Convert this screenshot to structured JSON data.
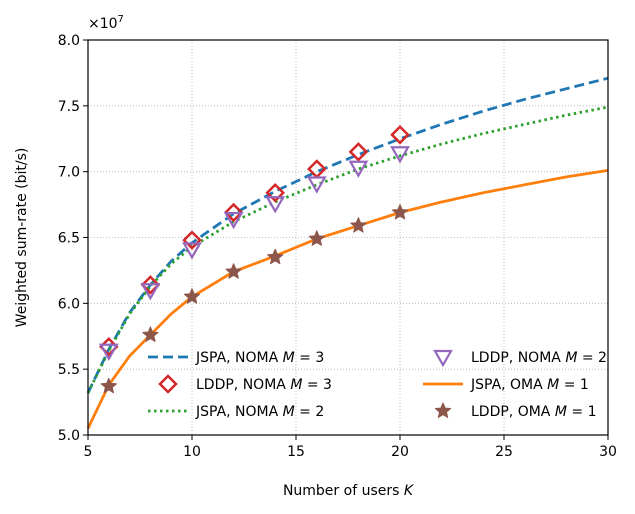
{
  "chart_data": {
    "type": "line",
    "title": "",
    "xlabel": "Number of users K",
    "ylabel": "Weighted sum-rate (bit/s)",
    "y_multiplier_label": "×10^7",
    "xlim": [
      5,
      30
    ],
    "ylim": [
      5.0,
      8.0
    ],
    "x_ticks": [
      5,
      10,
      15,
      20,
      25,
      30
    ],
    "y_ticks": [
      5.0,
      5.5,
      6.0,
      6.5,
      7.0,
      7.5,
      8.0
    ],
    "x_tick_labels": [
      "5",
      "10",
      "15",
      "20",
      "25",
      "30"
    ],
    "y_tick_labels": [
      "5.0",
      "5.5",
      "6.0",
      "6.5",
      "7.0",
      "7.5",
      "8.0"
    ],
    "grid": true,
    "legend_placement": "lower-center",
    "series": [
      {
        "name": "JSPA, NOMA M = 3",
        "legend_prefix": "JSPA, NOMA ",
        "legend_var": "M",
        "legend_suffix": " = 3",
        "style": "dashed",
        "color": "#1f77b4",
        "x": [
          5,
          6,
          7,
          8,
          9,
          10,
          12,
          14,
          16,
          18,
          20,
          22,
          24,
          26,
          28,
          30
        ],
        "y": [
          5.32,
          5.65,
          5.93,
          6.14,
          6.32,
          6.46,
          6.68,
          6.85,
          7.0,
          7.13,
          7.25,
          7.36,
          7.46,
          7.55,
          7.63,
          7.71
        ]
      },
      {
        "name": "LDDP, NOMA M = 3",
        "legend_prefix": "LDDP, NOMA ",
        "legend_var": "M",
        "legend_suffix": " = 3",
        "style": "marker-diamond",
        "color": "#d62728",
        "x": [
          6,
          8,
          10,
          12,
          14,
          16,
          18,
          20
        ],
        "y": [
          5.67,
          6.14,
          6.48,
          6.69,
          6.84,
          7.02,
          7.15,
          7.28
        ]
      },
      {
        "name": "JSPA, NOMA M = 2",
        "legend_prefix": "JSPA, NOMA ",
        "legend_var": "M",
        "legend_suffix": " = 2",
        "style": "dotted",
        "color": "#2ca02c",
        "x": [
          5,
          6,
          7,
          8,
          9,
          10,
          12,
          14,
          16,
          18,
          20,
          22,
          24,
          26,
          28,
          30
        ],
        "y": [
          5.32,
          5.64,
          5.92,
          6.13,
          6.3,
          6.43,
          6.62,
          6.77,
          6.9,
          7.02,
          7.12,
          7.21,
          7.29,
          7.36,
          7.43,
          7.49
        ]
      },
      {
        "name": "LDDP, NOMA M = 2",
        "legend_prefix": "LDDP, NOMA ",
        "legend_var": "M",
        "legend_suffix": " = 2",
        "style": "marker-triangle-down",
        "color": "#9467bd",
        "x": [
          6,
          8,
          10,
          12,
          14,
          16,
          18,
          20
        ],
        "y": [
          5.64,
          6.1,
          6.41,
          6.64,
          6.76,
          6.91,
          7.03,
          7.14
        ]
      },
      {
        "name": "JSPA, OMA M = 1",
        "legend_prefix": "JSPA, OMA ",
        "legend_var": "M",
        "legend_suffix": " = 1",
        "style": "solid",
        "color": "#ff7f0e",
        "x": [
          5,
          6,
          7,
          8,
          9,
          10,
          12,
          14,
          16,
          18,
          20,
          22,
          24,
          26,
          28,
          30
        ],
        "y": [
          5.05,
          5.38,
          5.6,
          5.76,
          5.92,
          6.05,
          6.24,
          6.36,
          6.49,
          6.59,
          6.69,
          6.77,
          6.84,
          6.9,
          6.96,
          7.01
        ]
      },
      {
        "name": "LDDP, OMA M = 1",
        "legend_prefix": "LDDP, OMA ",
        "legend_var": "M",
        "legend_suffix": " = 1",
        "style": "marker-star",
        "color": "#8c564b",
        "x": [
          6,
          8,
          10,
          12,
          14,
          16,
          18,
          20
        ],
        "y": [
          5.37,
          5.76,
          6.05,
          6.24,
          6.35,
          6.49,
          6.59,
          6.69
        ]
      }
    ]
  }
}
